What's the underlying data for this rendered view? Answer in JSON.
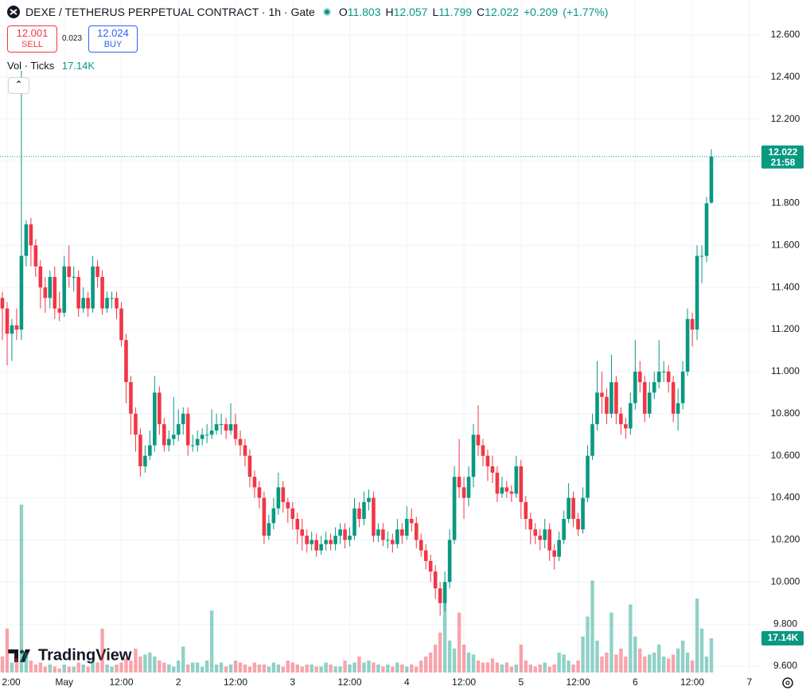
{
  "chart_data": {
    "type": "candlestick",
    "title": "DEXE / TETHERUS PERPETUAL CONTRACT · 1h · Gate",
    "ohlc_prefixes": [
      "O",
      "H",
      "L",
      "C"
    ],
    "change": {
      "value": 0.209,
      "label": "+0.209"
    },
    "change_pct": {
      "value": 1.77,
      "label": "(+1.77%)"
    },
    "countdown": "21:58",
    "volume_title": "Vol · Ticks",
    "volume_label": "17.14K",
    "up_color": "#089981",
    "down_color": "#f23645",
    "grid": true,
    "xlim": [
      -1.5,
      158.2
    ],
    "ylim": [
      9.57,
      12.766
    ],
    "xticks": [
      {
        "value": 0,
        "label": "2:00"
      },
      {
        "value": 12,
        "label": "May"
      },
      {
        "value": 24,
        "label": "12:00"
      },
      {
        "value": 36,
        "label": "2"
      },
      {
        "value": 48,
        "label": "12:00"
      },
      {
        "value": 60,
        "label": "3"
      },
      {
        "value": 72,
        "label": "12:00"
      },
      {
        "value": 84,
        "label": "4"
      },
      {
        "value": 96,
        "label": "12:00"
      },
      {
        "value": 108,
        "label": "5"
      },
      {
        "value": 120,
        "label": "12:00"
      },
      {
        "value": 132,
        "label": "6"
      },
      {
        "value": 144,
        "label": "12:00"
      },
      {
        "value": 156,
        "label": "7"
      }
    ],
    "yticks": [
      {
        "value": 9.6,
        "label": "9.600"
      },
      {
        "value": 9.8,
        "label": "9.800"
      },
      {
        "value": 10,
        "label": "10.000"
      },
      {
        "value": 10.2,
        "label": "10.200"
      },
      {
        "value": 10.4,
        "label": "10.400"
      },
      {
        "value": 10.6,
        "label": "10.600"
      },
      {
        "value": 10.8,
        "label": "10.800"
      },
      {
        "value": 11,
        "label": "11.000"
      },
      {
        "value": 11.2,
        "label": "11.200"
      },
      {
        "value": 11.4,
        "label": "11.400"
      },
      {
        "value": 11.6,
        "label": "11.600"
      },
      {
        "value": 11.8,
        "label": "11.800"
      },
      {
        "value": 12,
        "label": "12.000"
      },
      {
        "value": 12.2,
        "label": "12.200"
      },
      {
        "value": 12.4,
        "label": "12.400"
      },
      {
        "value": 12.6,
        "label": "12.600"
      }
    ],
    "x": [
      -1,
      0,
      1,
      2,
      3,
      4,
      5,
      6,
      7,
      8,
      9,
      10,
      11,
      12,
      13,
      14,
      15,
      16,
      17,
      18,
      19,
      20,
      21,
      22,
      23,
      24,
      25,
      26,
      27,
      28,
      29,
      30,
      31,
      32,
      33,
      34,
      35,
      36,
      37,
      38,
      39,
      40,
      41,
      42,
      43,
      44,
      45,
      46,
      47,
      48,
      49,
      50,
      51,
      52,
      53,
      54,
      55,
      56,
      57,
      58,
      59,
      60,
      61,
      62,
      63,
      64,
      65,
      66,
      67,
      68,
      69,
      70,
      71,
      72,
      73,
      74,
      75,
      76,
      77,
      78,
      79,
      80,
      81,
      82,
      83,
      84,
      85,
      86,
      87,
      88,
      89,
      90,
      91,
      92,
      93,
      94,
      95,
      96,
      97,
      98,
      99,
      100,
      101,
      102,
      103,
      104,
      105,
      106,
      107,
      108,
      109,
      110,
      111,
      112,
      113,
      114,
      115,
      116,
      117,
      118,
      119,
      120,
      121,
      122,
      123,
      124,
      125,
      126,
      127,
      128,
      129,
      130,
      131,
      132,
      133,
      134,
      135,
      136,
      137,
      138,
      139,
      140,
      141,
      142,
      143,
      144,
      145,
      146,
      147,
      148
    ],
    "open": [
      11.35,
      11.3,
      11.18,
      11.22,
      11.2,
      11.55,
      11.7,
      11.6,
      11.5,
      11.4,
      11.35,
      11.45,
      11.3,
      11.28,
      11.5,
      11.45,
      11.45,
      11.3,
      11.35,
      11.3,
      11.5,
      11.45,
      11.3,
      11.35,
      11.35,
      11.3,
      11.15,
      10.95,
      10.8,
      10.7,
      10.55,
      10.6,
      10.65,
      10.9,
      10.75,
      10.65,
      10.68,
      10.7,
      10.75,
      10.8,
      10.65,
      10.65,
      10.68,
      10.7,
      10.7,
      10.72,
      10.75,
      10.75,
      10.72,
      10.75,
      10.68,
      10.65,
      10.6,
      10.5,
      10.45,
      10.4,
      10.22,
      10.28,
      10.35,
      10.45,
      10.38,
      10.35,
      10.3,
      10.25,
      10.22,
      10.18,
      10.2,
      10.15,
      10.18,
      10.2,
      10.18,
      10.22,
      10.25,
      10.2,
      10.22,
      10.35,
      10.3,
      10.38,
      10.4,
      10.22,
      10.25,
      10.2,
      10.2,
      10.18,
      10.25,
      10.22,
      10.3,
      10.28,
      10.2,
      10.15,
      10.1,
      10.05,
      9.97,
      9.9,
      10.0,
      10.2,
      10.5,
      10.45,
      10.4,
      10.5,
      10.7,
      10.65,
      10.6,
      10.55,
      10.52,
      10.42,
      10.45,
      10.43,
      10.42,
      10.55,
      10.38,
      10.3,
      10.25,
      10.22,
      10.2,
      10.25,
      10.15,
      10.12,
      10.2,
      10.3,
      10.4,
      10.3,
      10.25,
      10.4,
      10.6,
      10.75,
      10.9,
      10.88,
      10.8,
      10.95,
      10.8,
      10.75,
      10.73,
      10.85,
      11.0,
      10.95,
      10.8,
      10.9,
      10.95,
      11.0,
      11.0,
      10.95,
      10.8,
      10.85,
      11.0,
      11.25,
      11.2,
      11.55,
      11.55,
      11.803
    ],
    "high": [
      11.38,
      11.33,
      11.25,
      11.3,
      12.43,
      11.72,
      11.73,
      11.63,
      11.53,
      11.45,
      11.48,
      11.5,
      11.38,
      11.55,
      11.6,
      11.5,
      11.48,
      11.4,
      11.38,
      11.55,
      11.53,
      11.48,
      11.38,
      11.38,
      11.38,
      11.33,
      11.18,
      10.98,
      10.83,
      10.73,
      10.65,
      10.72,
      10.98,
      10.93,
      10.78,
      10.72,
      10.88,
      10.82,
      10.83,
      10.83,
      10.7,
      10.72,
      10.73,
      10.75,
      10.82,
      10.8,
      10.8,
      10.78,
      10.85,
      10.8,
      10.72,
      10.68,
      10.63,
      10.53,
      10.48,
      10.43,
      10.32,
      10.4,
      10.52,
      10.48,
      10.4,
      10.38,
      10.33,
      10.3,
      10.25,
      10.24,
      10.23,
      10.22,
      10.24,
      10.23,
      10.26,
      10.28,
      10.28,
      10.26,
      10.4,
      10.38,
      10.43,
      10.44,
      10.43,
      10.28,
      10.28,
      10.24,
      10.23,
      10.3,
      10.28,
      10.36,
      10.35,
      10.31,
      10.23,
      10.18,
      10.13,
      10.08,
      10.0,
      10.05,
      10.25,
      10.55,
      10.68,
      10.5,
      10.55,
      10.75,
      10.84,
      10.68,
      10.63,
      10.6,
      10.55,
      10.5,
      10.48,
      10.46,
      10.6,
      10.58,
      10.41,
      10.33,
      10.28,
      10.25,
      10.3,
      10.28,
      10.18,
      10.24,
      10.34,
      10.47,
      10.43,
      10.33,
      10.45,
      10.65,
      10.8,
      11.05,
      11.0,
      10.92,
      11.08,
      10.98,
      10.83,
      10.78,
      10.9,
      11.15,
      11.05,
      10.98,
      10.95,
      11.0,
      11.15,
      11.05,
      11.03,
      10.98,
      10.92,
      11.05,
      11.3,
      11.28,
      11.6,
      11.6,
      11.83,
      12.057
    ],
    "low": [
      11.15,
      11.03,
      11.05,
      11.15,
      11.15,
      11.5,
      11.5,
      11.45,
      11.3,
      11.28,
      11.3,
      11.25,
      11.24,
      11.26,
      11.4,
      11.38,
      11.26,
      11.28,
      11.26,
      11.28,
      11.4,
      11.27,
      11.28,
      11.3,
      11.25,
      11.12,
      10.85,
      10.7,
      10.62,
      10.5,
      10.52,
      10.58,
      10.62,
      10.7,
      10.62,
      10.62,
      10.65,
      10.67,
      10.7,
      10.6,
      10.62,
      10.62,
      10.65,
      10.66,
      10.68,
      10.7,
      10.7,
      10.68,
      10.7,
      10.65,
      10.6,
      10.55,
      10.45,
      10.4,
      10.35,
      10.18,
      10.2,
      10.25,
      10.32,
      10.33,
      10.28,
      10.25,
      10.18,
      10.15,
      10.14,
      10.15,
      10.12,
      10.13,
      10.15,
      10.15,
      10.15,
      10.18,
      10.16,
      10.17,
      10.2,
      10.26,
      10.27,
      10.34,
      10.19,
      10.19,
      10.17,
      10.16,
      10.14,
      10.16,
      10.18,
      10.2,
      10.24,
      10.16,
      10.12,
      10.06,
      10.0,
      9.92,
      9.84,
      9.86,
      9.97,
      10.18,
      10.4,
      10.3,
      10.36,
      10.45,
      10.6,
      10.55,
      10.48,
      10.47,
      10.38,
      10.4,
      10.4,
      10.38,
      10.4,
      10.3,
      10.25,
      10.18,
      10.18,
      10.15,
      10.16,
      10.1,
      10.06,
      10.1,
      10.18,
      10.28,
      10.26,
      10.22,
      10.23,
      10.38,
      10.58,
      10.72,
      10.8,
      10.75,
      10.78,
      10.75,
      10.7,
      10.68,
      10.7,
      10.82,
      10.9,
      10.76,
      10.78,
      10.87,
      10.92,
      10.95,
      10.9,
      10.76,
      10.72,
      10.82,
      10.98,
      11.12,
      11.15,
      11.42,
      11.52,
      11.799
    ],
    "close": [
      11.3,
      11.18,
      11.22,
      11.2,
      11.55,
      11.7,
      11.6,
      11.5,
      11.4,
      11.35,
      11.45,
      11.3,
      11.28,
      11.5,
      11.45,
      11.45,
      11.3,
      11.35,
      11.3,
      11.5,
      11.45,
      11.3,
      11.35,
      11.35,
      11.3,
      11.15,
      10.95,
      10.8,
      10.7,
      10.55,
      10.6,
      10.65,
      10.9,
      10.75,
      10.65,
      10.68,
      10.7,
      10.75,
      10.8,
      10.65,
      10.65,
      10.68,
      10.7,
      10.7,
      10.72,
      10.75,
      10.75,
      10.72,
      10.75,
      10.68,
      10.65,
      10.6,
      10.5,
      10.45,
      10.4,
      10.22,
      10.28,
      10.35,
      10.45,
      10.38,
      10.35,
      10.3,
      10.25,
      10.22,
      10.18,
      10.2,
      10.15,
      10.18,
      10.2,
      10.18,
      10.22,
      10.25,
      10.2,
      10.22,
      10.35,
      10.3,
      10.38,
      10.4,
      10.22,
      10.25,
      10.2,
      10.2,
      10.18,
      10.25,
      10.22,
      10.3,
      10.28,
      10.2,
      10.15,
      10.1,
      10.05,
      9.97,
      9.9,
      10.0,
      10.2,
      10.5,
      10.45,
      10.4,
      10.5,
      10.7,
      10.65,
      10.6,
      10.55,
      10.52,
      10.42,
      10.45,
      10.43,
      10.42,
      10.55,
      10.38,
      10.3,
      10.25,
      10.22,
      10.2,
      10.25,
      10.15,
      10.12,
      10.2,
      10.3,
      10.4,
      10.3,
      10.25,
      10.4,
      10.6,
      10.75,
      10.9,
      10.88,
      10.8,
      10.95,
      10.8,
      10.75,
      10.73,
      10.85,
      11.0,
      10.95,
      10.8,
      10.9,
      10.95,
      11.0,
      11.0,
      10.95,
      10.8,
      10.85,
      11.0,
      11.25,
      11.2,
      11.55,
      11.55,
      11.8,
      12.022
    ],
    "volume": [
      8,
      22,
      5,
      7,
      84,
      10,
      6,
      4,
      5,
      3,
      4,
      3,
      2,
      4,
      3,
      3,
      5,
      4,
      3,
      6,
      5,
      22,
      4,
      3,
      4,
      5,
      7,
      6,
      12,
      8,
      9,
      10,
      8,
      6,
      5,
      4,
      3,
      6,
      13,
      4,
      5,
      5,
      3,
      6,
      31,
      4,
      5,
      3,
      4,
      6,
      5,
      4,
      3,
      5,
      4,
      4,
      3,
      5,
      4,
      3,
      6,
      5,
      4,
      3,
      4,
      4,
      3,
      3,
      5,
      4,
      3,
      3,
      6,
      4,
      5,
      8,
      5,
      6,
      5,
      4,
      3,
      4,
      3,
      5,
      4,
      3,
      4,
      3,
      6,
      8,
      10,
      14,
      20,
      35,
      16,
      12,
      30,
      14,
      10,
      9,
      6,
      5,
      5,
      7,
      5,
      4,
      5,
      3,
      4,
      14,
      6,
      4,
      3,
      4,
      5,
      3,
      4,
      10,
      9,
      6,
      4,
      6,
      18,
      28,
      46,
      16,
      8,
      10,
      30,
      9,
      12,
      8,
      34,
      18,
      12,
      8,
      9,
      10,
      14,
      8,
      7,
      9,
      12,
      16,
      10,
      6,
      37,
      22,
      8,
      17.14
    ]
  },
  "order_panel": {
    "sell_price": "12.001",
    "sell_label": "SELL",
    "spread": "0.023",
    "buy_price": "12.024",
    "buy_label": "BUY"
  },
  "watermark": "TradingView"
}
